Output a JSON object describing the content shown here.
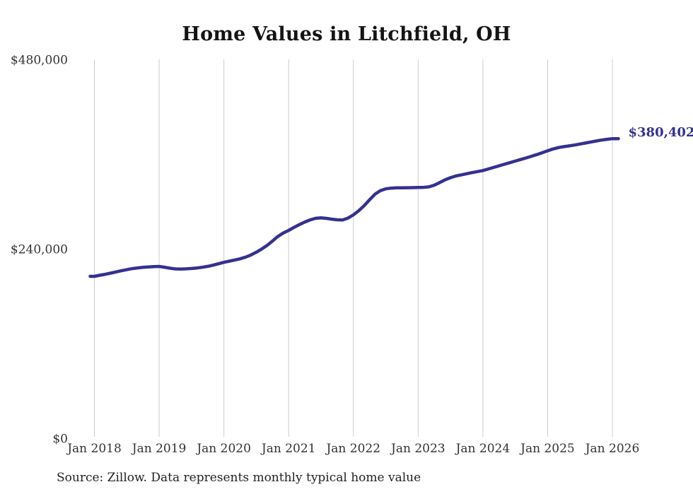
{
  "chart": {
    "title": "Home Values in Litchfield, OH",
    "source": "Source: Zillow. Data represents monthly typical home value",
    "end_label": "$380,402",
    "line_color": "#343190",
    "grid_color": "#cccccc",
    "axis_text_color": "#333333"
  },
  "chart_data": {
    "type": "line",
    "title": "Home Values in Litchfield, OH",
    "series_name": "Typical home value (monthly)",
    "frequency": "monthly",
    "x_start": "Jan 2018",
    "x_end": "Jan 2026",
    "x_tick_labels": [
      "Jan 2018",
      "Jan 2019",
      "Jan 2020",
      "Jan 2021",
      "Jan 2022",
      "Jan 2023",
      "Jan 2024",
      "Jan 2025",
      "Jan 2026"
    ],
    "y_ticks": [
      {
        "value": 0,
        "label": "$0"
      },
      {
        "value": 240000,
        "label": "$240,000"
      },
      {
        "value": 480000,
        "label": "$480,000"
      }
    ],
    "ylim": [
      0,
      480000
    ],
    "grid": "vertical-only",
    "legend": "none",
    "final_value": 380402,
    "final_value_label": "$380,402",
    "values": [
      206000,
      207300,
      208600,
      210000,
      211500,
      213000,
      214400,
      215700,
      216600,
      217300,
      217800,
      218200,
      218500,
      217500,
      216300,
      215400,
      215200,
      215500,
      215900,
      216500,
      217400,
      218600,
      220100,
      221900,
      223700,
      225200,
      226700,
      228200,
      230200,
      233000,
      236500,
      240500,
      245200,
      250700,
      256500,
      260900,
      264200,
      268000,
      271500,
      274800,
      277500,
      279500,
      280000,
      279400,
      278400,
      277600,
      277300,
      279800,
      283900,
      289200,
      295500,
      303000,
      310000,
      314500,
      316800,
      317700,
      318100,
      318200,
      318300,
      318400,
      318500,
      318700,
      319300,
      321500,
      324800,
      328300,
      331000,
      333100,
      334600,
      336000,
      337400,
      338700,
      340000,
      342000,
      344000,
      346000,
      348000,
      350000,
      352000,
      354000,
      356000,
      358100,
      360300,
      362600,
      365000,
      367300,
      369100,
      370300,
      371300,
      372400,
      373600,
      374900,
      376200,
      377500,
      378600,
      379600,
      380402
    ]
  }
}
